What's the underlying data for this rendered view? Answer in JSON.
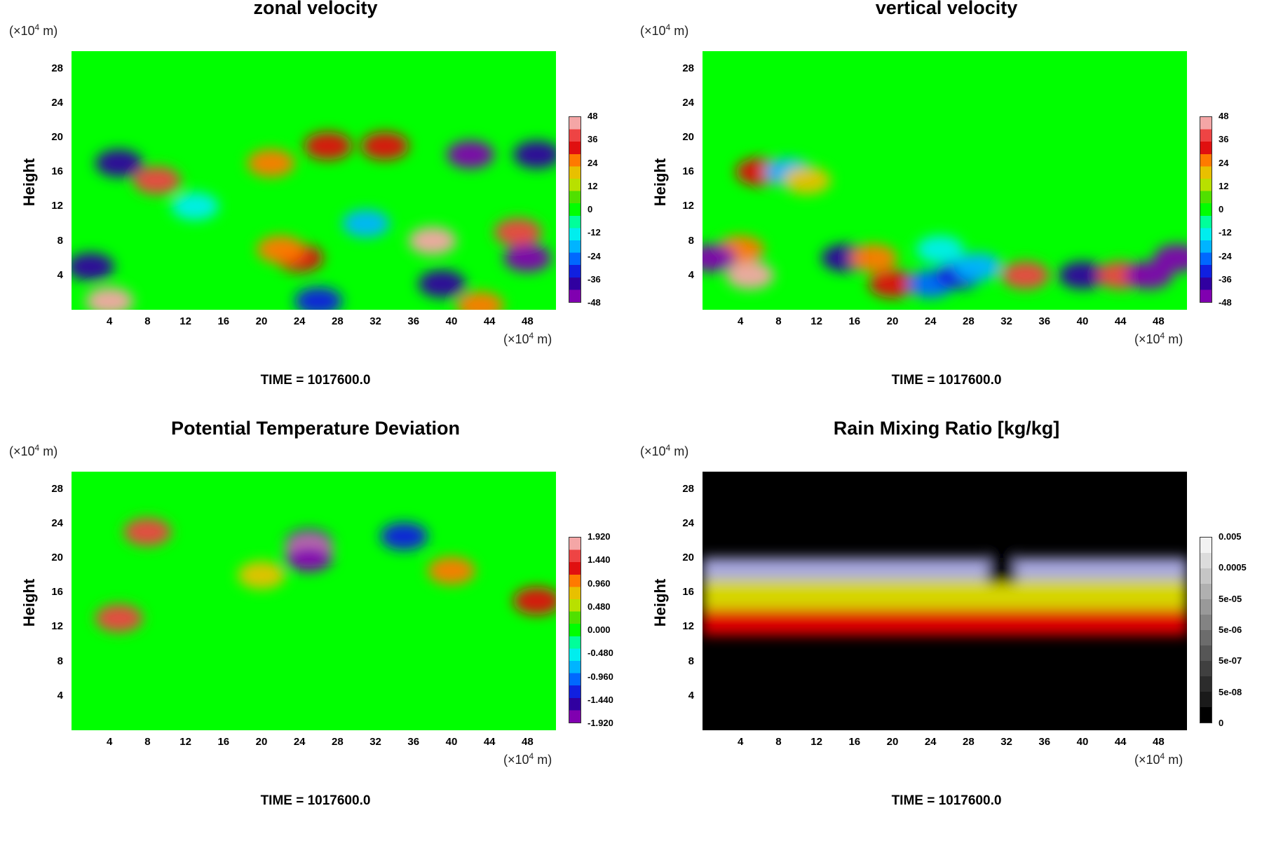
{
  "x_unit_prefix": "(×10",
  "unit_exp": "4",
  "unit_suffix": " m)",
  "panels": [
    {
      "title": "zonal velocity",
      "ylabel": "Height",
      "time_label": "TIME = 1017600.0",
      "colorbar_labels": [
        "48",
        "36",
        "24",
        "12",
        "0",
        "-12",
        "-24",
        "-36",
        "-48"
      ],
      "colormap": [
        "#f4a6a6",
        "#ee4444",
        "#e01010",
        "#ff7a00",
        "#e8c000",
        "#b8e000",
        "#50e000",
        "#00ff00",
        "#00ff9a",
        "#00eeee",
        "#00b4ff",
        "#0068ff",
        "#1020e0",
        "#3000a0",
        "#8000b0"
      ]
    },
    {
      "title": "vertical velocity",
      "ylabel": "Height",
      "time_label": "TIME = 1017600.0",
      "colorbar_labels": [
        "48",
        "36",
        "24",
        "12",
        "0",
        "-12",
        "-24",
        "-36",
        "-48"
      ],
      "colormap": [
        "#f4a6a6",
        "#ee4444",
        "#e01010",
        "#ff7a00",
        "#e8c000",
        "#b8e000",
        "#50e000",
        "#00ff00",
        "#00ff9a",
        "#00eeee",
        "#00b4ff",
        "#0068ff",
        "#1020e0",
        "#3000a0",
        "#8000b0"
      ]
    },
    {
      "title": "Potential Temperature Deviation",
      "ylabel": "Height",
      "time_label": "TIME = 1017600.0",
      "colorbar_labels": [
        "1.920",
        "1.440",
        "0.960",
        "0.480",
        "0.000",
        "-0.480",
        "-0.960",
        "-1.440",
        "-1.920"
      ],
      "colormap": [
        "#f4a6a6",
        "#ee4444",
        "#e01010",
        "#ff7a00",
        "#e8c000",
        "#b8e000",
        "#50e000",
        "#00ff00",
        "#00ff9a",
        "#00eeee",
        "#00b4ff",
        "#0068ff",
        "#1020e0",
        "#3000a0",
        "#8000b0"
      ]
    },
    {
      "title": "Rain Mixing Ratio [kg/kg]",
      "ylabel": "Height",
      "time_label": "TIME = 1017600.0",
      "colorbar_labels": [
        "0.005",
        "0.0005",
        "5e-05",
        "5e-06",
        "5e-07",
        "5e-08",
        "0"
      ],
      "colormap": [
        "#f2f2f2",
        "#dcdcdc",
        "#c6c6c6",
        "#b0b0b0",
        "#999999",
        "#838383",
        "#6c6c6c",
        "#565656",
        "#404040",
        "#2c2c2c",
        "#1a1a1a",
        "#000000"
      ]
    }
  ],
  "chart_data": [
    {
      "type": "heatmap",
      "title": "zonal velocity",
      "ylabel": "Height",
      "xlim": [
        0,
        51
      ],
      "ylim": [
        0,
        30
      ],
      "xticks": [
        "4",
        "8",
        "12",
        "16",
        "20",
        "24",
        "28",
        "32",
        "36",
        "40",
        "44",
        "48"
      ],
      "yticks": [
        "4",
        "8",
        "12",
        "16",
        "20",
        "24",
        "28"
      ],
      "value_range": [
        -48,
        48
      ],
      "background_value": 0,
      "features": [
        {
          "x": 38,
          "y": 8,
          "value": 42
        },
        {
          "x": 47,
          "y": 9,
          "value": 40
        },
        {
          "x": 48,
          "y": 6,
          "value": -48
        },
        {
          "x": 24,
          "y": 6,
          "value": 30
        },
        {
          "x": 22,
          "y": 7,
          "value": 24
        },
        {
          "x": 4,
          "y": 1,
          "value": 42
        },
        {
          "x": 2,
          "y": 5,
          "value": -36
        },
        {
          "x": 9,
          "y": 15,
          "value": 38
        },
        {
          "x": 27,
          "y": 19,
          "value": 32
        },
        {
          "x": 21,
          "y": 17,
          "value": 26
        },
        {
          "x": 33,
          "y": 19,
          "value": 30
        },
        {
          "x": 42,
          "y": 18,
          "value": -44
        },
        {
          "x": 49,
          "y": 18,
          "value": -40
        },
        {
          "x": 5,
          "y": 17,
          "value": -36
        },
        {
          "x": 39,
          "y": 3,
          "value": -40
        },
        {
          "x": 26,
          "y": 1,
          "value": -32
        },
        {
          "x": 43,
          "y": 0.5,
          "value": 26
        },
        {
          "x": 31,
          "y": 10,
          "value": -18
        },
        {
          "x": 13,
          "y": 12,
          "value": -14
        }
      ]
    },
    {
      "type": "heatmap",
      "title": "vertical velocity",
      "ylabel": "Height",
      "xlim": [
        0,
        51
      ],
      "ylim": [
        0,
        30
      ],
      "xticks": [
        "4",
        "8",
        "12",
        "16",
        "20",
        "24",
        "28",
        "32",
        "36",
        "40",
        "44",
        "48"
      ],
      "yticks": [
        "4",
        "8",
        "12",
        "16",
        "20",
        "24",
        "28"
      ],
      "value_range": [
        -48,
        48
      ],
      "background_value": 0,
      "features": [
        {
          "x": 5,
          "y": 4,
          "value": 44
        },
        {
          "x": 4,
          "y": 7,
          "value": 28
        },
        {
          "x": 1,
          "y": 6,
          "value": -46
        },
        {
          "x": 15,
          "y": 6,
          "value": -40
        },
        {
          "x": 18,
          "y": 6,
          "value": 26
        },
        {
          "x": 20,
          "y": 3,
          "value": 32
        },
        {
          "x": 24,
          "y": 3,
          "value": -24
        },
        {
          "x": 25,
          "y": 7,
          "value": -12
        },
        {
          "x": 34,
          "y": 4,
          "value": 40
        },
        {
          "x": 27,
          "y": 4,
          "value": -30
        },
        {
          "x": 29,
          "y": 5,
          "value": -22
        },
        {
          "x": 40,
          "y": 4,
          "value": -40
        },
        {
          "x": 44,
          "y": 4,
          "value": 36
        },
        {
          "x": 47,
          "y": 4,
          "value": -44
        },
        {
          "x": 50,
          "y": 6,
          "value": -46
        },
        {
          "x": 6,
          "y": 16,
          "value": 34
        },
        {
          "x": 9,
          "y": 16,
          "value": -22
        },
        {
          "x": 11,
          "y": 15,
          "value": 20
        }
      ]
    },
    {
      "type": "heatmap",
      "title": "Potential Temperature Deviation",
      "ylabel": "Height",
      "xlim": [
        0,
        51
      ],
      "ylim": [
        0,
        30
      ],
      "xticks": [
        "4",
        "8",
        "12",
        "16",
        "20",
        "24",
        "28",
        "32",
        "36",
        "40",
        "44",
        "48"
      ],
      "yticks": [
        "4",
        "8",
        "12",
        "16",
        "20",
        "24",
        "28"
      ],
      "value_range": [
        -1.92,
        1.92
      ],
      "background_value": 0,
      "features": [
        {
          "x": 25,
          "y": 21.7,
          "value": -1.92
        },
        {
          "x": 25,
          "y": 20.6,
          "value": 1.92
        },
        {
          "x": 25,
          "y": 20,
          "value": -1.92
        },
        {
          "x": 8,
          "y": 23,
          "value": 1.5
        },
        {
          "x": 35,
          "y": 22.5,
          "value": -1.2
        },
        {
          "x": 40,
          "y": 18.5,
          "value": 1.0
        },
        {
          "x": 5,
          "y": 13,
          "value": 1.6
        },
        {
          "x": 49,
          "y": 15,
          "value": 1.2
        },
        {
          "x": 20,
          "y": 18,
          "value": 0.8
        }
      ]
    },
    {
      "type": "heatmap",
      "title": "Rain Mixing Ratio [kg/kg]",
      "ylabel": "Height",
      "xlim": [
        0,
        51
      ],
      "ylim": [
        0,
        30
      ],
      "xticks": [
        "4",
        "8",
        "12",
        "16",
        "20",
        "24",
        "28",
        "32",
        "36",
        "40",
        "44",
        "48"
      ],
      "yticks": [
        "4",
        "8",
        "12",
        "16",
        "20",
        "24",
        "28"
      ],
      "colorbar": [
        "0.005",
        "0.0005",
        "5e-05",
        "5e-06",
        "5e-07",
        "5e-08",
        "0"
      ],
      "background_value": 0,
      "layers": [
        {
          "ymin": 17.5,
          "ymax": 20,
          "color": "#a8a8e0"
        },
        {
          "ymin": 14,
          "ymax": 17.5,
          "color": "#d6d600"
        },
        {
          "ymin": 11,
          "ymax": 14,
          "color": "#e00000"
        }
      ],
      "gap_x": [
        30,
        33
      ]
    }
  ]
}
